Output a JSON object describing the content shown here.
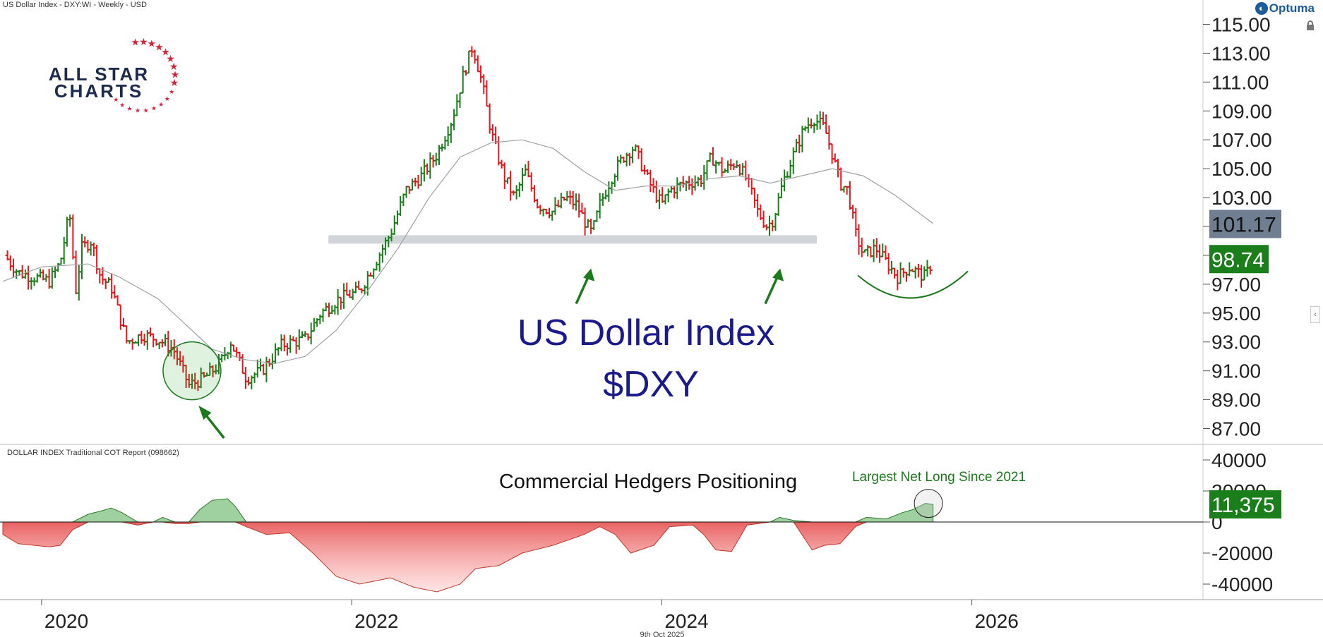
{
  "header": {
    "title": "US Dollar Index - DXY:WI - Weekly - USD",
    "brand": "Optuma",
    "footer_date": "9th Oct 2025"
  },
  "logo": {
    "line1": "ALL STAR",
    "line2": "CHARTS",
    "star_color": "#d6233c",
    "text_color": "#1d2b4f"
  },
  "icons": {
    "lock": "lock-icon",
    "collapse": "chevron-left-icon",
    "brand": "optuma-logo-icon"
  },
  "colors": {
    "up": "#1a7f1a",
    "down": "#e0191e",
    "ma": "#a0a0a0",
    "annotation": "#1b7a1b",
    "title": "#1a1a8c",
    "support_band": "#c9ced4",
    "price_tag_last": "#1a7f1a",
    "price_tag_ma": "#6f7f91"
  },
  "chart_data": [
    {
      "type": "candlestick",
      "title": "US Dollar Index",
      "subtitle": "$DXY",
      "ylim": [
        86,
        116
      ],
      "y_ticks": [
        "87.00",
        "89.00",
        "91.00",
        "93.00",
        "95.00",
        "97.00",
        "99.00",
        "101.00",
        "103.00",
        "105.00",
        "107.00",
        "109.00",
        "111.00",
        "113.00",
        "115.00"
      ],
      "x_ticks": [
        "2020",
        "2022",
        "2024",
        "2026"
      ],
      "x_range": [
        2019.75,
        2027.5
      ],
      "last_value": "98.74",
      "ma_value": "101.17",
      "support_level": 100.1,
      "close_path": [
        [
          2019.76,
          99.0
        ],
        [
          2019.85,
          97.8
        ],
        [
          2019.95,
          97.5
        ],
        [
          2020.05,
          97.2
        ],
        [
          2020.12,
          98.5
        ],
        [
          2020.18,
          102.0
        ],
        [
          2020.22,
          96.5
        ],
        [
          2020.26,
          99.5
        ],
        [
          2020.32,
          100.0
        ],
        [
          2020.38,
          97.5
        ],
        [
          2020.45,
          96.8
        ],
        [
          2020.55,
          93.0
        ],
        [
          2020.65,
          93.5
        ],
        [
          2020.75,
          93.2
        ],
        [
          2020.85,
          92.5
        ],
        [
          2020.95,
          90.0
        ],
        [
          2021.05,
          90.5
        ],
        [
          2021.15,
          91.5
        ],
        [
          2021.22,
          93.0
        ],
        [
          2021.32,
          90.5
        ],
        [
          2021.42,
          91.0
        ],
        [
          2021.55,
          92.8
        ],
        [
          2021.7,
          93.2
        ],
        [
          2021.8,
          95.0
        ],
        [
          2021.92,
          96.0
        ],
        [
          2022.05,
          96.5
        ],
        [
          2022.15,
          98.5
        ],
        [
          2022.25,
          100.5
        ],
        [
          2022.35,
          103.5
        ],
        [
          2022.45,
          104.5
        ],
        [
          2022.55,
          106.0
        ],
        [
          2022.65,
          108.5
        ],
        [
          2022.72,
          111.5
        ],
        [
          2022.78,
          113.5
        ],
        [
          2022.84,
          111.0
        ],
        [
          2022.9,
          107.5
        ],
        [
          2022.98,
          104.5
        ],
        [
          2023.05,
          103.0
        ],
        [
          2023.12,
          104.8
        ],
        [
          2023.2,
          102.5
        ],
        [
          2023.3,
          102.0
        ],
        [
          2023.38,
          103.0
        ],
        [
          2023.45,
          102.5
        ],
        [
          2023.52,
          101.0
        ],
        [
          2023.55,
          100.5
        ],
        [
          2023.6,
          102.5
        ],
        [
          2023.68,
          104.5
        ],
        [
          2023.75,
          105.8
        ],
        [
          2023.82,
          106.5
        ],
        [
          2023.92,
          104.0
        ],
        [
          2024.0,
          102.5
        ],
        [
          2024.05,
          103.5
        ],
        [
          2024.15,
          104.0
        ],
        [
          2024.25,
          104.2
        ],
        [
          2024.32,
          105.8
        ],
        [
          2024.4,
          104.8
        ],
        [
          2024.48,
          105.5
        ],
        [
          2024.55,
          104.2
        ],
        [
          2024.62,
          102.0
        ],
        [
          2024.68,
          101.0
        ],
        [
          2024.72,
          101.5
        ],
        [
          2024.78,
          104.0
        ],
        [
          2024.85,
          106.0
        ],
        [
          2024.92,
          107.8
        ],
        [
          2024.98,
          108.5
        ],
        [
          2025.05,
          107.8
        ],
        [
          2025.1,
          106.0
        ],
        [
          2025.15,
          104.0
        ],
        [
          2025.2,
          103.5
        ],
        [
          2025.25,
          100.5
        ],
        [
          2025.3,
          99.0
        ],
        [
          2025.38,
          99.5
        ],
        [
          2025.45,
          98.5
        ],
        [
          2025.52,
          97.5
        ],
        [
          2025.6,
          98.2
        ],
        [
          2025.65,
          97.8
        ],
        [
          2025.7,
          97.5
        ],
        [
          2025.75,
          98.74
        ]
      ],
      "ma_path": [
        [
          2019.75,
          97.2
        ],
        [
          2020.0,
          98.2
        ],
        [
          2020.3,
          98.4
        ],
        [
          2020.5,
          97.5
        ],
        [
          2020.75,
          96.0
        ],
        [
          2020.95,
          94.0
        ],
        [
          2021.1,
          92.5
        ],
        [
          2021.3,
          91.8
        ],
        [
          2021.5,
          91.5
        ],
        [
          2021.7,
          92.0
        ],
        [
          2021.9,
          93.8
        ],
        [
          2022.1,
          96.5
        ],
        [
          2022.3,
          99.5
        ],
        [
          2022.5,
          103.0
        ],
        [
          2022.7,
          105.8
        ],
        [
          2022.9,
          106.8
        ],
        [
          2023.1,
          107.0
        ],
        [
          2023.3,
          106.4
        ],
        [
          2023.5,
          104.8
        ],
        [
          2023.7,
          103.5
        ],
        [
          2023.9,
          103.8
        ],
        [
          2024.1,
          103.8
        ],
        [
          2024.3,
          104.3
        ],
        [
          2024.5,
          104.5
        ],
        [
          2024.7,
          104.0
        ],
        [
          2024.9,
          104.5
        ],
        [
          2025.1,
          105.0
        ],
        [
          2025.3,
          104.5
        ],
        [
          2025.5,
          103.2
        ],
        [
          2025.75,
          101.2
        ]
      ],
      "annotations": [
        {
          "kind": "circle",
          "x": 2020.97,
          "y": 91.0
        },
        {
          "kind": "arrow",
          "x": 2021.04,
          "y": 88.2,
          "dir": "up-left"
        },
        {
          "kind": "arrow",
          "x": 2023.53,
          "y": 97.6,
          "dir": "up-right"
        },
        {
          "kind": "arrow",
          "x": 2024.75,
          "y": 97.6,
          "dir": "up-right"
        },
        {
          "kind": "smile",
          "x": 2025.62,
          "y": 98.0
        }
      ]
    },
    {
      "type": "area",
      "title": "DOLLAR INDEX Traditional COT Report (098662)",
      "subtitle": "Commercial Hedgers Positioning",
      "annotation": "Largest Net Long Since 2021",
      "ylim": [
        -50000,
        50000
      ],
      "y_ticks": [
        "40000",
        "20000",
        "0",
        "-20000",
        "-40000"
      ],
      "last_value": "11,375",
      "x": [
        2019.75,
        2019.85,
        2019.95,
        2020.05,
        2020.12,
        2020.2,
        2020.3,
        2020.38,
        2020.45,
        2020.52,
        2020.62,
        2020.72,
        2020.78,
        2020.86,
        2020.95,
        2021.02,
        2021.1,
        2021.2,
        2021.25,
        2021.32,
        2021.45,
        2021.6,
        2021.75,
        2021.9,
        2022.05,
        2022.15,
        2022.25,
        2022.4,
        2022.55,
        2022.7,
        2022.8,
        2022.95,
        2023.1,
        2023.3,
        2023.5,
        2023.6,
        2023.7,
        2023.8,
        2023.95,
        2024.05,
        2024.2,
        2024.27,
        2024.35,
        2024.45,
        2024.55,
        2024.7,
        2024.76,
        2024.85,
        2024.97,
        2025.05,
        2025.15,
        2025.25,
        2025.32,
        2025.45,
        2025.55,
        2025.62,
        2025.7,
        2025.75
      ],
      "values": [
        -8000,
        -14000,
        -15000,
        -16000,
        -15000,
        -5000,
        5000,
        7000,
        9000,
        6000,
        -2000,
        0,
        3000,
        -1000,
        -1000,
        8000,
        14000,
        15000,
        10000,
        -3000,
        -8000,
        -7000,
        -20000,
        -35000,
        -40000,
        -38000,
        -36000,
        -42000,
        -45000,
        -40000,
        -30000,
        -28000,
        -20000,
        -15000,
        -8000,
        -3000,
        -8000,
        -20000,
        -15000,
        -3000,
        -2000,
        -8000,
        -18000,
        -19000,
        -2000,
        0,
        3000,
        1000,
        -18000,
        -15000,
        -14000,
        -3000,
        3000,
        2000,
        6000,
        8000,
        12000,
        11375
      ]
    }
  ]
}
